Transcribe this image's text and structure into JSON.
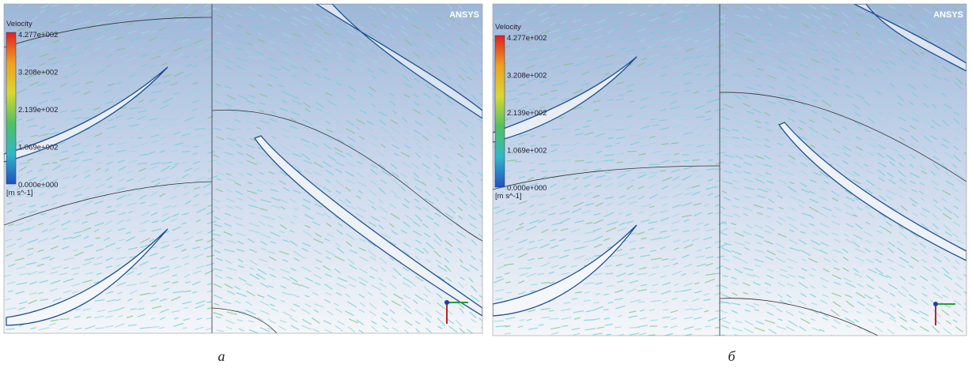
{
  "panels": [
    {
      "caption": "а",
      "legend": {
        "title": "Velocity",
        "ticks": [
          "4.277e+002",
          "3.208e+002",
          "2.139e+002",
          "1.069e+002",
          "0.000e+000"
        ],
        "unit": "[m s^-1]"
      },
      "brand": "ANSYS"
    },
    {
      "caption": "б",
      "legend": {
        "title": "Velocity",
        "ticks": [
          "4.277e+002",
          "3.208e+002",
          "2.139e+002",
          "1.069e+002",
          "0.000e+000"
        ],
        "unit": "[m s^-1]"
      },
      "brand": "ANSYS"
    }
  ]
}
